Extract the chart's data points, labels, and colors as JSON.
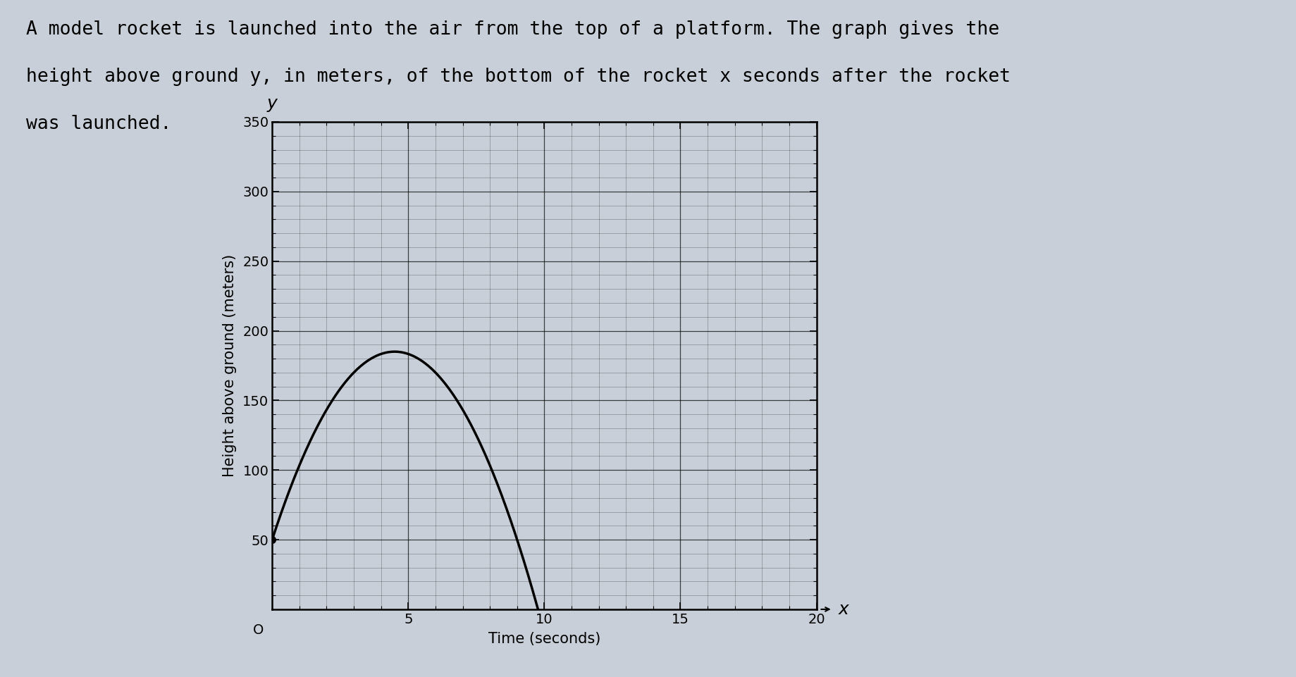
{
  "title_line1": "A model rocket is launched into the air from the top of a platform. The graph gives the",
  "title_line2": "height above ground ",
  "title_y_var": "y",
  "title_line2b": ", in meters, of the bottom of the rocket ",
  "title_x_var": "x",
  "title_line2c": " seconds after the rocket",
  "title_line3": "was launched.",
  "xlabel": "Time (seconds)",
  "ylabel": "Height above ground (meters)",
  "axis_label_x": "x",
  "axis_label_y": "y",
  "x_min": 0,
  "x_max": 20,
  "y_min": 0,
  "y_max": 350,
  "x_ticks": [
    5,
    10,
    15,
    20
  ],
  "y_ticks": [
    50,
    100,
    150,
    200,
    250,
    300,
    350
  ],
  "x_minor_ticks": 1,
  "y_minor_ticks": 10,
  "dot_x": 0,
  "dot_y": 50,
  "vertex_x": 4.5,
  "vertex_y": 185,
  "curve_c": 50,
  "background_color": "#c8cfd8",
  "plot_bg_color": "#c8cfd8",
  "line_color": "#000000",
  "dot_color": "#000000",
  "grid_color": "#000000",
  "text_color": "#000000",
  "title_fontsize": 19,
  "axis_label_fontsize": 15,
  "tick_fontsize": 14,
  "figsize": [
    18.39,
    9.61
  ],
  "dpi": 100
}
